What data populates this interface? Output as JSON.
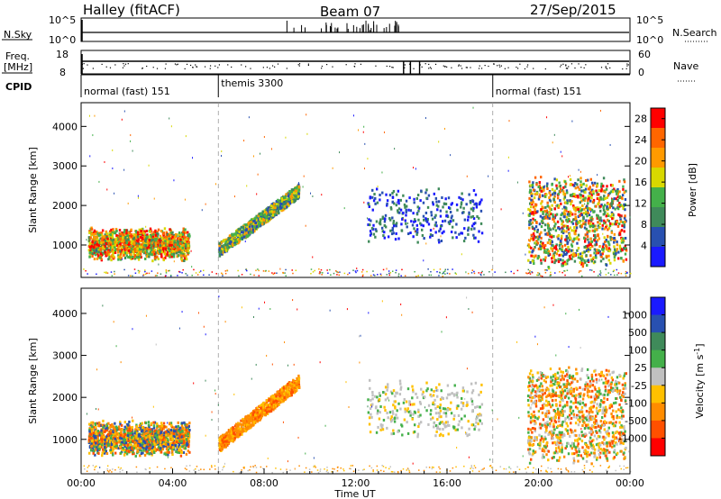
{
  "header": {
    "station": "Halley (fitACF)",
    "beam": "Beam 07",
    "date": "27/Sep/2015"
  },
  "panels": {
    "nsky_label": "N.Sky",
    "nsky_ticks": [
      "10^5",
      "10^0"
    ],
    "nsearch_label": "N.Search",
    "nsearch_ticks": [
      "10^5",
      "10^0"
    ],
    "freq_label": "Freq.",
    "freq_unit": "[MHz]",
    "freq_ticks": [
      "18",
      "8"
    ],
    "nave_label": "Nave",
    "nave_ticks": [
      "60",
      "0"
    ],
    "cpid_label": "CPID",
    "cpid_segments": [
      {
        "label": "normal (fast) 151",
        "start_h": 0,
        "end_h": 6
      },
      {
        "label": "themis 3300",
        "start_h": 6,
        "end_h": 18
      },
      {
        "label": "normal (fast) 151",
        "start_h": 18,
        "end_h": 24
      }
    ]
  },
  "chart_data": [
    {
      "type": "heatmap",
      "name": "power",
      "ylabel": "Slant Range [km]",
      "xlim": [
        0,
        24
      ],
      "ylim": [
        180,
        4600
      ],
      "yticks": [
        1000,
        2000,
        3000,
        4000
      ],
      "colorbar_label": "Power [dB]",
      "colorbar_ticks": [
        "4",
        "8",
        "12",
        "16",
        "20",
        "24",
        "28"
      ],
      "colorbar_range": [
        0,
        30
      ],
      "colors": [
        "#1a1aff",
        "#2850b0",
        "#3f8a5a",
        "#44b04a",
        "#d8d800",
        "#ff9a00",
        "#ff6600",
        "#ff0000"
      ],
      "echo_regions": [
        {
          "start_h": 0.3,
          "end_h": 4.7,
          "range_start_km": 800,
          "range_end_km": 1300,
          "typical_db": 18
        },
        {
          "start_h": 6.0,
          "end_h": 9.5,
          "range_start_km": 900,
          "range_end_km": 2400,
          "typical_db": 12
        },
        {
          "start_h": 12.5,
          "end_h": 17.5,
          "range_start_km": 1200,
          "range_end_km": 2300,
          "typical_db": 6
        },
        {
          "start_h": 19.5,
          "end_h": 23.8,
          "range_start_km": 600,
          "range_end_km": 2600,
          "typical_db": 18
        }
      ]
    },
    {
      "type": "heatmap",
      "name": "velocity",
      "xlabel": "Time UT",
      "ylabel": "Slant Range [km]",
      "xlim": [
        0,
        24
      ],
      "ylim": [
        180,
        4600
      ],
      "xticks": [
        "00:00",
        "04:00",
        "08:00",
        "12:00",
        "16:00",
        "20:00",
        "00:00"
      ],
      "yticks": [
        1000,
        2000,
        3000,
        4000
      ],
      "colorbar_label": "Velocity [m s",
      "colorbar_label_sup": "-1",
      "colorbar_label_end": "]",
      "colorbar_ticks": [
        "1000",
        "500",
        "100",
        "25",
        "-25",
        "-100",
        "-500",
        "-1000"
      ],
      "colors": [
        "#1a1aff",
        "#2850b0",
        "#3f8a5a",
        "#44b04a",
        "#c0c0c0",
        "#ffc000",
        "#ff8c00",
        "#ff5000",
        "#ff0000"
      ],
      "echo_regions": [
        {
          "start_h": 0.3,
          "end_h": 4.7,
          "range_start_km": 800,
          "range_end_km": 1300,
          "typical_ms": -300
        },
        {
          "start_h": 6.0,
          "end_h": 9.5,
          "range_start_km": 900,
          "range_end_km": 2400,
          "typical_ms": -400
        },
        {
          "start_h": 12.5,
          "end_h": 17.5,
          "range_start_km": 1200,
          "range_end_km": 2300,
          "typical_ms": 0
        },
        {
          "start_h": 19.5,
          "end_h": 23.8,
          "range_start_km": 600,
          "range_end_km": 2600,
          "typical_ms": -300
        }
      ]
    }
  ]
}
